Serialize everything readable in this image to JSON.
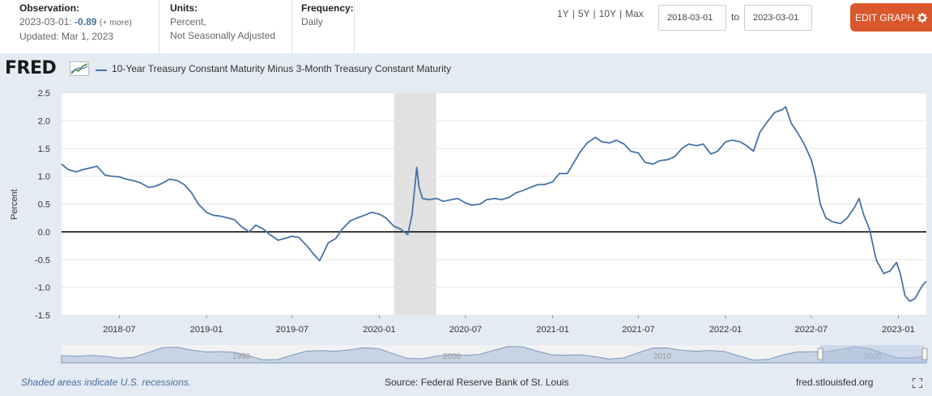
{
  "header": {
    "observation_label": "Observation:",
    "observation_date": "2023-03-01:",
    "observation_value": "-0.89",
    "observation_more": "(+ more)",
    "updated": "Updated: Mar 1, 2023",
    "units_label": "Units:",
    "units_line1": "Percent,",
    "units_line2": "Not Seasonally Adjusted",
    "frequency_label": "Frequency:",
    "frequency_value": "Daily",
    "range_buttons": [
      "1Y",
      "5Y",
      "10Y",
      "Max"
    ],
    "range_separator": "|",
    "date_from": "2018-03-01",
    "date_to": "2023-03-01",
    "to_label": "to",
    "edit_button": "EDIT GRAPH"
  },
  "logo_text": "FRED",
  "series_title": "10-Year Treasury Constant Maturity Minus 3-Month Treasury Constant Maturity",
  "footer": {
    "recession_note": "Shaded areas indicate U.S. recessions.",
    "source": "Source: Federal Reserve Bank of St. Louis",
    "site": "fred.stlouisfed.org"
  },
  "colors": {
    "series": "#4572a7",
    "edit_button": "#d9572c",
    "recession": "#e1e1e1",
    "background": "#e4ebf3"
  },
  "icons": {
    "logo": "line-chart-icon",
    "edit": "gear-icon",
    "fullscreen": "fullscreen-icon"
  },
  "chart_data": {
    "type": "line",
    "ylabel": "Percent",
    "ylim": [
      -1.5,
      2.5
    ],
    "yticks": [
      "2.5",
      "2.0",
      "1.5",
      "1.0",
      "0.5",
      "0.0",
      "-0.5",
      "-1.0",
      "-1.5"
    ],
    "xlim": [
      "2018-03-01",
      "2023-03-01"
    ],
    "xticks": [
      "2018-07",
      "2019-01",
      "2019-07",
      "2020-01",
      "2020-07",
      "2021-01",
      "2021-07",
      "2022-01",
      "2022-07",
      "2023-01"
    ],
    "grid": true,
    "zero_line": true,
    "recessions": [
      [
        "2020-02-01",
        "2020-04-30"
      ]
    ],
    "navigator_labels": [
      "1990",
      "2000",
      "2010",
      "2020"
    ],
    "series": [
      {
        "values": [
          [
            "2018-03-01",
            1.22
          ],
          [
            "2018-03-15",
            1.12
          ],
          [
            "2018-04-01",
            1.08
          ],
          [
            "2018-04-15",
            1.12
          ],
          [
            "2018-05-01",
            1.15
          ],
          [
            "2018-05-15",
            1.18
          ],
          [
            "2018-06-01",
            1.02
          ],
          [
            "2018-06-15",
            1.0
          ],
          [
            "2018-07-01",
            0.99
          ],
          [
            "2018-07-15",
            0.95
          ],
          [
            "2018-08-01",
            0.92
          ],
          [
            "2018-08-15",
            0.88
          ],
          [
            "2018-09-01",
            0.8
          ],
          [
            "2018-09-15",
            0.82
          ],
          [
            "2018-10-01",
            0.88
          ],
          [
            "2018-10-15",
            0.95
          ],
          [
            "2018-11-01",
            0.92
          ],
          [
            "2018-11-15",
            0.85
          ],
          [
            "2018-12-01",
            0.7
          ],
          [
            "2018-12-15",
            0.5
          ],
          [
            "2019-01-01",
            0.35
          ],
          [
            "2019-01-15",
            0.3
          ],
          [
            "2019-02-01",
            0.28
          ],
          [
            "2019-02-15",
            0.25
          ],
          [
            "2019-03-01",
            0.22
          ],
          [
            "2019-03-15",
            0.1
          ],
          [
            "2019-04-01",
            0.0
          ],
          [
            "2019-04-15",
            0.12
          ],
          [
            "2019-05-01",
            0.05
          ],
          [
            "2019-05-15",
            -0.05
          ],
          [
            "2019-06-01",
            -0.15
          ],
          [
            "2019-06-15",
            -0.12
          ],
          [
            "2019-07-01",
            -0.08
          ],
          [
            "2019-07-15",
            -0.1
          ],
          [
            "2019-08-01",
            -0.25
          ],
          [
            "2019-08-15",
            -0.4
          ],
          [
            "2019-08-28",
            -0.52
          ],
          [
            "2019-09-15",
            -0.2
          ],
          [
            "2019-10-01",
            -0.12
          ],
          [
            "2019-10-15",
            0.05
          ],
          [
            "2019-11-01",
            0.2
          ],
          [
            "2019-11-15",
            0.25
          ],
          [
            "2019-12-01",
            0.3
          ],
          [
            "2019-12-15",
            0.35
          ],
          [
            "2020-01-01",
            0.32
          ],
          [
            "2020-01-15",
            0.25
          ],
          [
            "2020-02-01",
            0.1
          ],
          [
            "2020-02-15",
            0.05
          ],
          [
            "2020-03-01",
            -0.05
          ],
          [
            "2020-03-10",
            0.3
          ],
          [
            "2020-03-20",
            1.16
          ],
          [
            "2020-03-25",
            0.8
          ],
          [
            "2020-04-01",
            0.6
          ],
          [
            "2020-04-15",
            0.58
          ],
          [
            "2020-05-01",
            0.6
          ],
          [
            "2020-05-15",
            0.55
          ],
          [
            "2020-06-01",
            0.58
          ],
          [
            "2020-06-15",
            0.6
          ],
          [
            "2020-07-01",
            0.52
          ],
          [
            "2020-07-15",
            0.48
          ],
          [
            "2020-08-01",
            0.5
          ],
          [
            "2020-08-15",
            0.58
          ],
          [
            "2020-09-01",
            0.6
          ],
          [
            "2020-09-15",
            0.58
          ],
          [
            "2020-10-01",
            0.62
          ],
          [
            "2020-10-15",
            0.7
          ],
          [
            "2020-11-01",
            0.75
          ],
          [
            "2020-11-15",
            0.8
          ],
          [
            "2020-12-01",
            0.85
          ],
          [
            "2020-12-15",
            0.85
          ],
          [
            "2021-01-01",
            0.9
          ],
          [
            "2021-01-15",
            1.05
          ],
          [
            "2021-02-01",
            1.05
          ],
          [
            "2021-02-15",
            1.25
          ],
          [
            "2021-03-01",
            1.45
          ],
          [
            "2021-03-15",
            1.6
          ],
          [
            "2021-04-01",
            1.7
          ],
          [
            "2021-04-15",
            1.62
          ],
          [
            "2021-05-01",
            1.6
          ],
          [
            "2021-05-15",
            1.65
          ],
          [
            "2021-06-01",
            1.58
          ],
          [
            "2021-06-15",
            1.45
          ],
          [
            "2021-07-01",
            1.42
          ],
          [
            "2021-07-15",
            1.25
          ],
          [
            "2021-08-01",
            1.22
          ],
          [
            "2021-08-15",
            1.28
          ],
          [
            "2021-09-01",
            1.3
          ],
          [
            "2021-09-15",
            1.35
          ],
          [
            "2021-10-01",
            1.5
          ],
          [
            "2021-10-15",
            1.58
          ],
          [
            "2021-11-01",
            1.55
          ],
          [
            "2021-11-15",
            1.58
          ],
          [
            "2021-12-01",
            1.4
          ],
          [
            "2021-12-15",
            1.45
          ],
          [
            "2022-01-01",
            1.62
          ],
          [
            "2022-01-15",
            1.65
          ],
          [
            "2022-02-01",
            1.62
          ],
          [
            "2022-02-15",
            1.55
          ],
          [
            "2022-03-01",
            1.45
          ],
          [
            "2022-03-15",
            1.8
          ],
          [
            "2022-04-01",
            2.0
          ],
          [
            "2022-04-15",
            2.15
          ],
          [
            "2022-05-01",
            2.2
          ],
          [
            "2022-05-08",
            2.25
          ],
          [
            "2022-05-20",
            1.95
          ],
          [
            "2022-06-01",
            1.8
          ],
          [
            "2022-06-15",
            1.6
          ],
          [
            "2022-07-01",
            1.3
          ],
          [
            "2022-07-10",
            1.0
          ],
          [
            "2022-07-20",
            0.5
          ],
          [
            "2022-08-01",
            0.25
          ],
          [
            "2022-08-15",
            0.18
          ],
          [
            "2022-09-01",
            0.15
          ],
          [
            "2022-09-15",
            0.25
          ],
          [
            "2022-10-01",
            0.45
          ],
          [
            "2022-10-10",
            0.6
          ],
          [
            "2022-10-20",
            0.3
          ],
          [
            "2022-11-01",
            0.05
          ],
          [
            "2022-11-15",
            -0.5
          ],
          [
            "2022-12-01",
            -0.75
          ],
          [
            "2022-12-15",
            -0.7
          ],
          [
            "2022-12-28",
            -0.55
          ],
          [
            "2023-01-05",
            -0.75
          ],
          [
            "2023-01-15",
            -1.15
          ],
          [
            "2023-01-25",
            -1.25
          ],
          [
            "2023-02-05",
            -1.2
          ],
          [
            "2023-02-15",
            -1.05
          ],
          [
            "2023-02-22",
            -0.95
          ],
          [
            "2023-03-01",
            -0.89
          ]
        ]
      }
    ]
  }
}
